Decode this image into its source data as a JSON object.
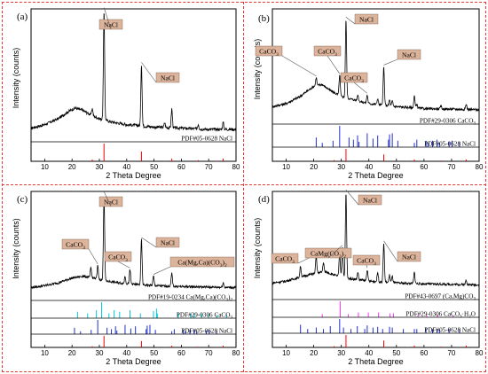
{
  "chart_data": [
    {
      "type": "line",
      "panel_label": "(a)",
      "xlabel": "2 Theta Degree",
      "ylabel": "Intensity (counts)",
      "xlim": [
        5,
        80
      ],
      "x_ticks": [
        "10",
        "20",
        "30",
        "40",
        "50",
        "60",
        "70",
        "80"
      ],
      "pattern": {
        "baseline": [
          [
            5,
            0.07
          ],
          [
            10,
            0.1
          ],
          [
            15,
            0.15
          ],
          [
            18,
            0.2
          ],
          [
            21,
            0.24
          ],
          [
            24,
            0.22
          ],
          [
            27,
            0.18
          ],
          [
            30,
            0.15
          ],
          [
            35,
            0.12
          ],
          [
            40,
            0.1
          ],
          [
            50,
            0.08
          ],
          [
            60,
            0.07
          ],
          [
            70,
            0.06
          ],
          [
            80,
            0.06
          ]
        ],
        "peaks": [
          [
            27.4,
            0.06
          ],
          [
            31.7,
            0.93
          ],
          [
            45.4,
            0.52
          ],
          [
            53.9,
            0.04
          ],
          [
            56.5,
            0.16
          ],
          [
            66.2,
            0.04
          ],
          [
            75.3,
            0.06
          ]
        ]
      },
      "annotations": [
        {
          "text": "NaCl",
          "x": 31.7
        },
        {
          "text": "NaCl",
          "x": 45.4
        }
      ],
      "references": [
        {
          "name": "PDF#05-0628 NaCl",
          "color": "#ff0000",
          "lines": [
            [
              27.4,
              0.1
            ],
            [
              31.7,
              1.0
            ],
            [
              45.4,
              0.55
            ],
            [
              53.9,
              0.02
            ],
            [
              56.5,
              0.15
            ],
            [
              66.2,
              0.06
            ],
            [
              73.1,
              0.02
            ],
            [
              75.3,
              0.15
            ]
          ]
        }
      ]
    },
    {
      "type": "line",
      "panel_label": "(b)",
      "xlabel": "2 Theta Degree",
      "ylabel": "Intensity (counts)",
      "xlim": [
        5,
        80
      ],
      "x_ticks": [
        "10",
        "20",
        "30",
        "40",
        "50",
        "60",
        "70",
        "80"
      ],
      "pattern": {
        "baseline": [
          [
            5,
            0.12
          ],
          [
            10,
            0.15
          ],
          [
            15,
            0.22
          ],
          [
            20,
            0.32
          ],
          [
            23,
            0.34
          ],
          [
            26,
            0.28
          ],
          [
            30,
            0.22
          ],
          [
            40,
            0.15
          ],
          [
            50,
            0.12
          ],
          [
            60,
            0.1
          ],
          [
            80,
            0.09
          ]
        ],
        "peaks": [
          [
            20.9,
            0.08
          ],
          [
            29.4,
            0.2
          ],
          [
            31.7,
            0.78
          ],
          [
            36.0,
            0.06
          ],
          [
            39.4,
            0.08
          ],
          [
            43.2,
            0.06
          ],
          [
            45.4,
            0.38
          ],
          [
            47.5,
            0.06
          ],
          [
            48.5,
            0.05
          ],
          [
            56.5,
            0.12
          ],
          [
            57.4,
            0.04
          ],
          [
            66.2,
            0.03
          ],
          [
            75.3,
            0.05
          ]
        ]
      },
      "annotations": [
        {
          "text": "NaCl",
          "x": 31.7
        },
        {
          "text": "NaCl",
          "x": 45.4
        },
        {
          "text": "CaCO3",
          "x": 20.9
        },
        {
          "text": "CaCO3",
          "x": 29.4
        },
        {
          "text": "CaCO3",
          "x": 39.4
        }
      ],
      "references": [
        {
          "name": "PDF#29-0306 CaCO3",
          "color": "#1f2fd1",
          "lines": [
            [
              20.9,
              0.45
            ],
            [
              23.1,
              0.2
            ],
            [
              27.0,
              0.3
            ],
            [
              29.4,
              1.0
            ],
            [
              32.8,
              0.45
            ],
            [
              34.4,
              0.35
            ],
            [
              35.9,
              0.55
            ],
            [
              36.4,
              0.25
            ],
            [
              39.4,
              0.65
            ],
            [
              41.5,
              0.4
            ],
            [
              43.2,
              0.55
            ],
            [
              47.1,
              0.35
            ],
            [
              47.5,
              0.6
            ],
            [
              48.5,
              0.65
            ],
            [
              50.5,
              0.3
            ],
            [
              56.5,
              0.2
            ],
            [
              57.4,
              0.35
            ],
            [
              60.7,
              0.3
            ],
            [
              61.4,
              0.2
            ],
            [
              63.1,
              0.3
            ],
            [
              64.7,
              0.35
            ],
            [
              65.6,
              0.2
            ],
            [
              69.1,
              0.25
            ],
            [
              70.2,
              0.3
            ],
            [
              72.9,
              0.25
            ]
          ]
        },
        {
          "name": "PDF#05-0628 NaCl",
          "color": "#ff0000",
          "lines": [
            [
              27.4,
              0.1
            ],
            [
              31.7,
              1.0
            ],
            [
              45.4,
              0.55
            ],
            [
              53.9,
              0.02
            ],
            [
              56.5,
              0.15
            ],
            [
              66.2,
              0.06
            ],
            [
              73.1,
              0.02
            ],
            [
              75.3,
              0.15
            ]
          ]
        }
      ]
    },
    {
      "type": "line",
      "panel_label": "(c)",
      "xlabel": "2 Theta Degree",
      "ylabel": "Intensity (counts)",
      "xlim": [
        5,
        80
      ],
      "x_ticks": [
        "10",
        "20",
        "30",
        "40",
        "50",
        "60",
        "70",
        "80"
      ],
      "pattern": {
        "baseline": [
          [
            5,
            0.08
          ],
          [
            10,
            0.1
          ],
          [
            15,
            0.13
          ],
          [
            20,
            0.18
          ],
          [
            24,
            0.2
          ],
          [
            28,
            0.18
          ],
          [
            32,
            0.15
          ],
          [
            40,
            0.12
          ],
          [
            50,
            0.1
          ],
          [
            60,
            0.09
          ],
          [
            80,
            0.08
          ]
        ],
        "peaks": [
          [
            26.9,
            0.1
          ],
          [
            29.4,
            0.14
          ],
          [
            31.7,
            0.92
          ],
          [
            39.4,
            0.08
          ],
          [
            41.2,
            0.15
          ],
          [
            45.4,
            0.48
          ],
          [
            49.8,
            0.1
          ],
          [
            56.5,
            0.14
          ],
          [
            75.3,
            0.05
          ]
        ]
      },
      "annotations": [
        {
          "text": "NaCl",
          "x": 31.7
        },
        {
          "text": "NaCl",
          "x": 45.4
        },
        {
          "text": "CaCO3",
          "x": 29.4
        },
        {
          "text": "CaCO3",
          "x": 41.2
        },
        {
          "text": "Ca(Mg,Ca)(CO3)2",
          "x": 49.8
        }
      ],
      "references": [
        {
          "name": "PDF#19-0234 Ca(Mg,Ca)(CO3)2",
          "color": "#00c8d7",
          "lines": [
            [
              22.0,
              0.4
            ],
            [
              25.7,
              0.3
            ],
            [
              28.9,
              0.5
            ],
            [
              30.8,
              1.0
            ],
            [
              33.5,
              0.3
            ],
            [
              35.4,
              0.5
            ],
            [
              37.4,
              0.4
            ],
            [
              41.2,
              0.5
            ],
            [
              45.0,
              0.3
            ],
            [
              49.8,
              0.45
            ],
            [
              50.9,
              0.6
            ],
            [
              51.2,
              0.3
            ],
            [
              58.9,
              0.3
            ],
            [
              63.5,
              0.3
            ],
            [
              64.7,
              0.25
            ],
            [
              67.4,
              0.3
            ],
            [
              70.0,
              0.25
            ],
            [
              73.0,
              0.2
            ],
            [
              76.5,
              0.25
            ]
          ]
        },
        {
          "name": "PDF#29-0306 CaCO3",
          "color": "#1f2fd1",
          "lines": [
            [
              20.9,
              0.45
            ],
            [
              23.1,
              0.2
            ],
            [
              27.0,
              0.3
            ],
            [
              29.4,
              1.0
            ],
            [
              32.8,
              0.45
            ],
            [
              34.4,
              0.35
            ],
            [
              35.9,
              0.55
            ],
            [
              36.4,
              0.25
            ],
            [
              39.4,
              0.65
            ],
            [
              41.5,
              0.4
            ],
            [
              43.2,
              0.55
            ],
            [
              47.1,
              0.35
            ],
            [
              47.5,
              0.6
            ],
            [
              48.5,
              0.65
            ],
            [
              50.5,
              0.3
            ],
            [
              56.5,
              0.2
            ],
            [
              57.4,
              0.35
            ],
            [
              60.7,
              0.3
            ],
            [
              61.4,
              0.2
            ],
            [
              63.1,
              0.3
            ],
            [
              64.7,
              0.35
            ],
            [
              65.6,
              0.2
            ],
            [
              69.1,
              0.25
            ],
            [
              70.2,
              0.3
            ],
            [
              72.9,
              0.25
            ]
          ]
        },
        {
          "name": "PDF#05-0628 NaCl",
          "color": "#ff0000",
          "lines": [
            [
              27.4,
              0.1
            ],
            [
              31.7,
              1.0
            ],
            [
              45.4,
              0.55
            ],
            [
              53.9,
              0.02
            ],
            [
              56.5,
              0.15
            ],
            [
              66.2,
              0.06
            ],
            [
              73.1,
              0.02
            ],
            [
              75.3,
              0.15
            ]
          ]
        }
      ]
    },
    {
      "type": "line",
      "panel_label": "(d)",
      "xlabel": "2 Theta Degree",
      "ylabel": "Intensity (counts)",
      "xlim": [
        5,
        80
      ],
      "x_ticks": [
        "10",
        "20",
        "30",
        "40",
        "50",
        "60",
        "70",
        "80"
      ],
      "pattern": {
        "baseline": [
          [
            5,
            0.12
          ],
          [
            10,
            0.14
          ],
          [
            15,
            0.18
          ],
          [
            20,
            0.22
          ],
          [
            24,
            0.24
          ],
          [
            28,
            0.2
          ],
          [
            32,
            0.17
          ],
          [
            40,
            0.14
          ],
          [
            50,
            0.12
          ],
          [
            60,
            0.11
          ],
          [
            80,
            0.1
          ]
        ],
        "peaks": [
          [
            15.2,
            0.12
          ],
          [
            20.9,
            0.18
          ],
          [
            23.5,
            0.1
          ],
          [
            29.4,
            0.25
          ],
          [
            30.4,
            0.32
          ],
          [
            31.7,
            0.92
          ],
          [
            36.0,
            0.08
          ],
          [
            39.4,
            0.12
          ],
          [
            43.2,
            0.1
          ],
          [
            45.4,
            0.42
          ],
          [
            47.5,
            0.08
          ],
          [
            48.5,
            0.07
          ],
          [
            56.5,
            0.12
          ],
          [
            75.3,
            0.05
          ]
        ]
      },
      "annotations": [
        {
          "text": "NaCl",
          "x": 31.7
        },
        {
          "text": "NaCl",
          "x": 45.4
        },
        {
          "text": "CaCO3",
          "x": 20.9
        },
        {
          "text": "CaMg(CO3)2",
          "x": 30.4
        },
        {
          "text": "CaCO3",
          "x": 39.4
        }
      ],
      "references": [
        {
          "name": "PDF#43-0697 (Ca,Mg)CO3",
          "color": "#ff33ff",
          "lines": [
            [
              23.1,
              0.2
            ],
            [
              29.6,
              1.0
            ],
            [
              32.5,
              0.2
            ],
            [
              36.2,
              0.3
            ],
            [
              39.8,
              0.3
            ],
            [
              43.5,
              0.3
            ],
            [
              47.7,
              0.25
            ],
            [
              48.9,
              0.25
            ],
            [
              57.8,
              0.15
            ],
            [
              61.0,
              0.1
            ],
            [
              64.9,
              0.15
            ],
            [
              70.6,
              0.1
            ]
          ]
        },
        {
          "name": "PDF#29-0306 CaCO3·H2O",
          "color": "#1f2fd1",
          "lines": [
            [
              15.2,
              0.6
            ],
            [
              17.8,
              0.3
            ],
            [
              20.9,
              0.4
            ],
            [
              23.5,
              0.3
            ],
            [
              26.0,
              0.5
            ],
            [
              29.4,
              1.0
            ],
            [
              30.8,
              0.4
            ],
            [
              33.5,
              0.3
            ],
            [
              35.8,
              0.5
            ],
            [
              38.5,
              0.3
            ],
            [
              39.4,
              0.55
            ],
            [
              41.5,
              0.4
            ],
            [
              43.2,
              0.45
            ],
            [
              45.0,
              0.3
            ],
            [
              47.5,
              0.45
            ],
            [
              48.5,
              0.4
            ],
            [
              52.5,
              0.3
            ],
            [
              56.5,
              0.3
            ],
            [
              57.4,
              0.3
            ],
            [
              60.7,
              0.35
            ],
            [
              63.1,
              0.3
            ],
            [
              64.7,
              0.3
            ],
            [
              65.6,
              0.25
            ],
            [
              69.1,
              0.3
            ],
            [
              72.9,
              0.3
            ]
          ]
        },
        {
          "name": "PDF#05-0628 NaCl",
          "color": "#ff0000",
          "lines": [
            [
              27.4,
              0.1
            ],
            [
              31.7,
              1.0
            ],
            [
              45.4,
              0.55
            ],
            [
              53.9,
              0.02
            ],
            [
              56.5,
              0.15
            ],
            [
              66.2,
              0.06
            ],
            [
              73.1,
              0.02
            ],
            [
              75.3,
              0.15
            ]
          ]
        }
      ]
    }
  ],
  "colors": {
    "pattern": "#000000",
    "annotation_box": "#dcb39b",
    "divider": "#e53935"
  }
}
